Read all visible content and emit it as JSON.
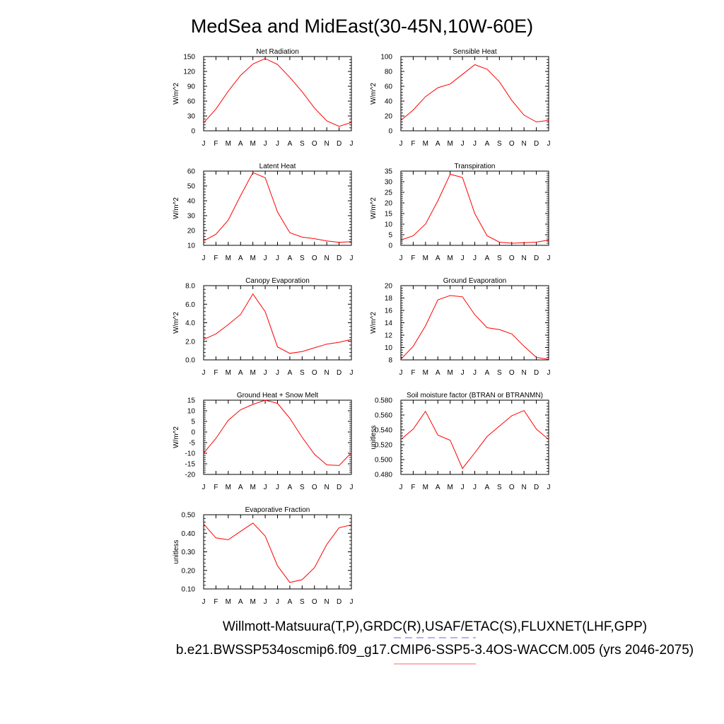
{
  "page": {
    "title": "MedSea and MidEast(30-45N,10W-60E)",
    "footer_line1": "Willmott-Matsuura(T,P),GRDC(R),USAF/ETAC(S),FLUXNET(LHF,GPP)",
    "footer_line2": "b.e21.BWSSP534oscmip6.f09_g17.CMIP6-SSP5-3.4OS-WACCM.005 (yrs 2046-2075)",
    "line_color": "#ff0000",
    "legend_dash_color": "#6666ee",
    "legend_solid_color": "#ff6666"
  },
  "chart_data": [
    {
      "type": "line",
      "title": "Net Radiation",
      "ylabel": "W/m^2",
      "categories": [
        "J",
        "F",
        "M",
        "A",
        "M",
        "J",
        "J",
        "A",
        "S",
        "O",
        "N",
        "D",
        "J"
      ],
      "values": [
        16,
        44,
        80,
        112,
        135,
        146,
        134,
        108,
        79,
        46,
        20,
        9,
        17
      ],
      "ylim": [
        0,
        150
      ],
      "yticks": [
        0,
        30,
        60,
        90,
        120,
        150
      ],
      "ytick_labels": [
        "0",
        "30",
        "60",
        "90",
        "120",
        "150"
      ],
      "grid": false,
      "color": "#ff0000"
    },
    {
      "type": "line",
      "title": "Sensible Heat",
      "ylabel": "W/m^2",
      "categories": [
        "J",
        "F",
        "M",
        "A",
        "M",
        "J",
        "J",
        "A",
        "S",
        "O",
        "N",
        "D",
        "J"
      ],
      "values": [
        14,
        28,
        46,
        58,
        63,
        76,
        89,
        83,
        66,
        41,
        21,
        12,
        14
      ],
      "ylim": [
        0,
        100
      ],
      "yticks": [
        0,
        20,
        40,
        60,
        80,
        100
      ],
      "ytick_labels": [
        "0",
        "20",
        "40",
        "60",
        "80",
        "100"
      ],
      "grid": false,
      "color": "#ff0000"
    },
    {
      "type": "line",
      "title": "Latent Heat",
      "ylabel": "W/m^2",
      "categories": [
        "J",
        "F",
        "M",
        "A",
        "M",
        "J",
        "J",
        "A",
        "S",
        "O",
        "N",
        "D",
        "J"
      ],
      "values": [
        13,
        17.5,
        27,
        43.5,
        59,
        55.5,
        32.5,
        18.5,
        15.5,
        14.5,
        13,
        12,
        12.5
      ],
      "ylim": [
        10,
        60
      ],
      "yticks": [
        10,
        20,
        30,
        40,
        50,
        60
      ],
      "ytick_labels": [
        "10",
        "20",
        "30",
        "40",
        "50",
        "60"
      ],
      "grid": false,
      "color": "#ff0000"
    },
    {
      "type": "line",
      "title": "Transpiration",
      "ylabel": "W/m^2",
      "categories": [
        "J",
        "F",
        "M",
        "A",
        "M",
        "J",
        "J",
        "A",
        "S",
        "O",
        "N",
        "D",
        "J"
      ],
      "values": [
        2.5,
        4.5,
        10,
        21,
        33.5,
        32,
        15,
        4.5,
        1.5,
        1,
        1.2,
        1.5,
        2.5
      ],
      "ylim": [
        0,
        35
      ],
      "yticks": [
        0,
        5,
        10,
        15,
        20,
        25,
        30,
        35
      ],
      "ytick_labels": [
        "0",
        "5",
        "10",
        "15",
        "20",
        "25",
        "30",
        "35"
      ],
      "grid": false,
      "color": "#ff0000"
    },
    {
      "type": "line",
      "title": "Canopy Evaporation",
      "ylabel": "W/m^2",
      "categories": [
        "J",
        "F",
        "M",
        "A",
        "M",
        "J",
        "J",
        "A",
        "S",
        "O",
        "N",
        "D",
        "J"
      ],
      "values": [
        2.2,
        2.8,
        3.8,
        4.9,
        7.1,
        5.2,
        1.4,
        0.7,
        0.9,
        1.3,
        1.7,
        1.9,
        2.2
      ],
      "ylim": [
        0,
        8
      ],
      "yticks": [
        0,
        2,
        4,
        6,
        8
      ],
      "ytick_labels": [
        "0.0",
        "2.0",
        "4.0",
        "6.0",
        "8.0"
      ],
      "grid": false,
      "color": "#ff0000"
    },
    {
      "type": "line",
      "title": "Ground Evaporation",
      "ylabel": "W/m^2",
      "categories": [
        "J",
        "F",
        "M",
        "A",
        "M",
        "J",
        "J",
        "A",
        "S",
        "O",
        "N",
        "D",
        "J"
      ],
      "values": [
        8.1,
        10.2,
        13.5,
        17.7,
        18.4,
        18.2,
        15.3,
        13.2,
        12.9,
        12.2,
        10.2,
        8.4,
        8.1
      ],
      "ylim": [
        8,
        20
      ],
      "yticks": [
        8,
        10,
        12,
        14,
        16,
        18,
        20
      ],
      "ytick_labels": [
        "8",
        "10",
        "12",
        "14",
        "16",
        "18",
        "20"
      ],
      "grid": false,
      "color": "#ff0000"
    },
    {
      "type": "line",
      "title": "Ground Heat + Snow Melt",
      "ylabel": "W/m^2",
      "categories": [
        "J",
        "F",
        "M",
        "A",
        "M",
        "J",
        "J",
        "A",
        "S",
        "O",
        "N",
        "D",
        "J"
      ],
      "values": [
        -10,
        -3,
        5.5,
        10.5,
        13,
        15,
        13.5,
        6.5,
        -2.5,
        -10.5,
        -15.5,
        -15.8,
        -9.8
      ],
      "ylim": [
        -20,
        15
      ],
      "yticks": [
        -20,
        -15,
        -10,
        -5,
        0,
        5,
        10,
        15
      ],
      "ytick_labels": [
        "-20",
        "-15",
        "-10",
        "-5",
        "0",
        "5",
        "10",
        "15"
      ],
      "grid": false,
      "color": "#ff0000"
    },
    {
      "type": "line",
      "title": "Soil moisture factor (BTRAN or BTRANMN)",
      "ylabel": "unitless",
      "categories": [
        "J",
        "F",
        "M",
        "A",
        "M",
        "J",
        "J",
        "A",
        "S",
        "O",
        "N",
        "D",
        "J"
      ],
      "values": [
        0.527,
        0.541,
        0.565,
        0.533,
        0.526,
        0.488,
        0.509,
        0.531,
        0.545,
        0.559,
        0.566,
        0.541,
        0.527
      ],
      "ylim": [
        0.48,
        0.58
      ],
      "yticks": [
        0.48,
        0.5,
        0.52,
        0.54,
        0.56,
        0.58
      ],
      "ytick_labels": [
        "0.480",
        "0.500",
        "0.520",
        "0.540",
        "0.560",
        "0.580"
      ],
      "grid": false,
      "color": "#ff0000"
    },
    {
      "type": "line",
      "title": "Evaporative Fraction",
      "ylabel": "unitless",
      "categories": [
        "J",
        "F",
        "M",
        "A",
        "M",
        "J",
        "J",
        "A",
        "S",
        "O",
        "N",
        "D",
        "J"
      ],
      "values": [
        0.45,
        0.375,
        0.365,
        0.41,
        0.455,
        0.385,
        0.225,
        0.135,
        0.15,
        0.215,
        0.34,
        0.43,
        0.445
      ],
      "ylim": [
        0.1,
        0.5
      ],
      "yticks": [
        0.1,
        0.2,
        0.3,
        0.4,
        0.5
      ],
      "ytick_labels": [
        "0.10",
        "0.20",
        "0.30",
        "0.40",
        "0.50"
      ],
      "grid": false,
      "color": "#ff0000"
    }
  ]
}
